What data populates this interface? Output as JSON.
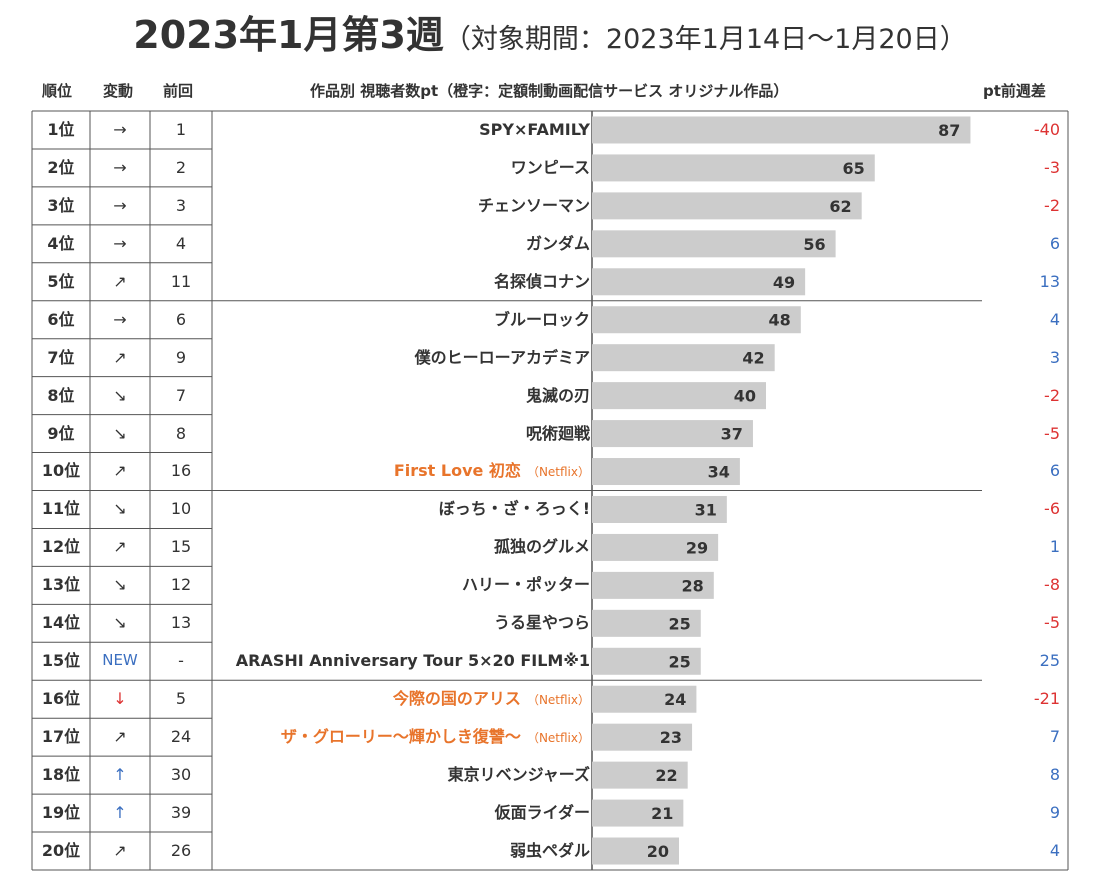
{
  "title": {
    "main": "2023年1月第3週",
    "sub": "（対象期間：2023年1月14日～1月20日）"
  },
  "header": {
    "rank": "順位",
    "change": "変動",
    "previous": "前回",
    "title": "作品別 視聴者数pt（橙字：定額制動画配信サービス オリジナル作品）",
    "diff": "pt前週差"
  },
  "colors": {
    "bar": "#cccccc",
    "original": "#e8742b",
    "up": "#3b6fc0",
    "down": "#dd3333",
    "text": "#333333"
  },
  "rows": [
    {
      "rank": "1位",
      "change": "→",
      "change_type": "flat",
      "prev": "1",
      "title": "SPY×FAMILY",
      "platform": "",
      "original": false,
      "value": "87",
      "diff": "-40"
    },
    {
      "rank": "2位",
      "change": "→",
      "change_type": "flat",
      "prev": "2",
      "title": "ワンピース",
      "platform": "",
      "original": false,
      "value": "65",
      "diff": "-3"
    },
    {
      "rank": "3位",
      "change": "→",
      "change_type": "flat",
      "prev": "3",
      "title": "チェンソーマン",
      "platform": "",
      "original": false,
      "value": "62",
      "diff": "-2"
    },
    {
      "rank": "4位",
      "change": "→",
      "change_type": "flat",
      "prev": "4",
      "title": "ガンダム",
      "platform": "",
      "original": false,
      "value": "56",
      "diff": "6"
    },
    {
      "rank": "5位",
      "change": "↗",
      "change_type": "up",
      "prev": "11",
      "title": "名探偵コナン",
      "platform": "",
      "original": false,
      "value": "49",
      "diff": "13"
    },
    {
      "rank": "6位",
      "change": "→",
      "change_type": "flat",
      "prev": "6",
      "title": "ブルーロック",
      "platform": "",
      "original": false,
      "value": "48",
      "diff": "4"
    },
    {
      "rank": "7位",
      "change": "↗",
      "change_type": "up",
      "prev": "9",
      "title": "僕のヒーローアカデミア",
      "platform": "",
      "original": false,
      "value": "42",
      "diff": "3"
    },
    {
      "rank": "8位",
      "change": "↘",
      "change_type": "down",
      "prev": "7",
      "title": "鬼滅の刃",
      "platform": "",
      "original": false,
      "value": "40",
      "diff": "-2"
    },
    {
      "rank": "9位",
      "change": "↘",
      "change_type": "down",
      "prev": "8",
      "title": "呪術廻戦",
      "platform": "",
      "original": false,
      "value": "37",
      "diff": "-5"
    },
    {
      "rank": "10位",
      "change": "↗",
      "change_type": "up",
      "prev": "16",
      "title": "First Love 初恋",
      "platform": "（Netflix）",
      "original": true,
      "value": "34",
      "diff": "6"
    },
    {
      "rank": "11位",
      "change": "↘",
      "change_type": "down",
      "prev": "10",
      "title": "ぼっち・ざ・ろっく!",
      "platform": "",
      "original": false,
      "value": "31",
      "diff": "-6"
    },
    {
      "rank": "12位",
      "change": "↗",
      "change_type": "up",
      "prev": "15",
      "title": "孤独のグルメ",
      "platform": "",
      "original": false,
      "value": "29",
      "diff": "1"
    },
    {
      "rank": "13位",
      "change": "↘",
      "change_type": "down",
      "prev": "12",
      "title": "ハリー・ポッター",
      "platform": "",
      "original": false,
      "value": "28",
      "diff": "-8"
    },
    {
      "rank": "14位",
      "change": "↘",
      "change_type": "down",
      "prev": "13",
      "title": "うる星やつら",
      "platform": "",
      "original": false,
      "value": "25",
      "diff": "-5"
    },
    {
      "rank": "15位",
      "change": "NEW",
      "change_type": "new",
      "prev": "-",
      "title": "ARASHI Anniversary Tour 5×20 FILM※1",
      "platform": "",
      "original": false,
      "value": "25",
      "diff": "25"
    },
    {
      "rank": "16位",
      "change": "↓",
      "change_type": "bigdown",
      "prev": "5",
      "title": "今際の国のアリス",
      "platform": "（Netflix）",
      "original": true,
      "value": "24",
      "diff": "-21"
    },
    {
      "rank": "17位",
      "change": "↗",
      "change_type": "up",
      "prev": "24",
      "title": "ザ・グローリー～輝かしき復讐～",
      "platform": "（Netflix）",
      "original": true,
      "value": "23",
      "diff": "7"
    },
    {
      "rank": "18位",
      "change": "↑",
      "change_type": "bigup",
      "prev": "30",
      "title": "東京リベンジャーズ",
      "platform": "",
      "original": false,
      "value": "22",
      "diff": "8"
    },
    {
      "rank": "19位",
      "change": "↑",
      "change_type": "bigup",
      "prev": "39",
      "title": "仮面ライダー",
      "platform": "",
      "original": false,
      "value": "21",
      "diff": "9"
    },
    {
      "rank": "20位",
      "change": "↗",
      "change_type": "up",
      "prev": "26",
      "title": "弱虫ペダル",
      "platform": "",
      "original": false,
      "value": "20",
      "diff": "4"
    }
  ],
  "chart_data": {
    "type": "bar",
    "title": "2023年1月第3週（対象期間：2023年1月14日～1月20日）",
    "xlabel": "作品別 視聴者数pt（橙字：定額制動画配信サービス オリジナル作品）",
    "ylabel": "",
    "orientation": "horizontal",
    "categories": [
      "SPY×FAMILY",
      "ワンピース",
      "チェンソーマン",
      "ガンダム",
      "名探偵コナン",
      "ブルーロック",
      "僕のヒーローアカデミア",
      "鬼滅の刃",
      "呪術廻戦",
      "First Love 初恋",
      "ぼっち・ざ・ろっく!",
      "孤独のグルメ",
      "ハリー・ポッター",
      "うる星やつら",
      "ARASHI Anniversary Tour 5×20 FILM※1",
      "今際の国のアリス",
      "ザ・グローリー～輝かしき復讐～",
      "東京リベンジャーズ",
      "仮面ライダー",
      "弱虫ペダル"
    ],
    "values": [
      87,
      65,
      62,
      56,
      49,
      48,
      42,
      40,
      37,
      34,
      31,
      29,
      28,
      25,
      25,
      24,
      23,
      22,
      21,
      20
    ],
    "xlim": [
      0,
      100
    ],
    "grid": false
  }
}
